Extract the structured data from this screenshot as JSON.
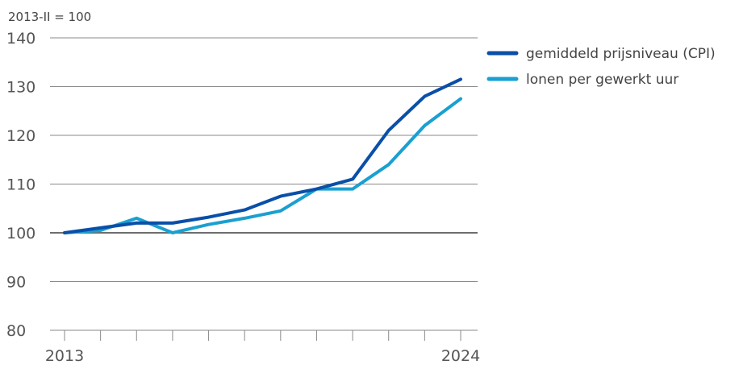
{
  "chart_data": {
    "type": "line",
    "unit_label": "2013-II = 100",
    "x_start_label": "2013",
    "x_end_label": "2024",
    "x": [
      0,
      1,
      2,
      3,
      4,
      5,
      6,
      7,
      8,
      9,
      10,
      11
    ],
    "ylim": [
      80,
      140
    ],
    "yticks": [
      "80",
      "90",
      "100",
      "110",
      "120",
      "130",
      "140"
    ],
    "baseline": 100,
    "grid": true,
    "legend_position": "top-right",
    "series": [
      {
        "name": "gemiddeld prijsniveau (CPI)",
        "color": "#0a4fa8",
        "values": [
          100,
          101,
          102,
          102,
          103.2,
          104.7,
          107.5,
          109,
          111,
          121,
          128,
          131.5
        ]
      },
      {
        "name": "lonen per gewerkt uur",
        "color": "#1aa0d0",
        "values": [
          100,
          100.5,
          103,
          100,
          101.7,
          103,
          104.5,
          109,
          109,
          114,
          122,
          127.5
        ]
      }
    ]
  }
}
